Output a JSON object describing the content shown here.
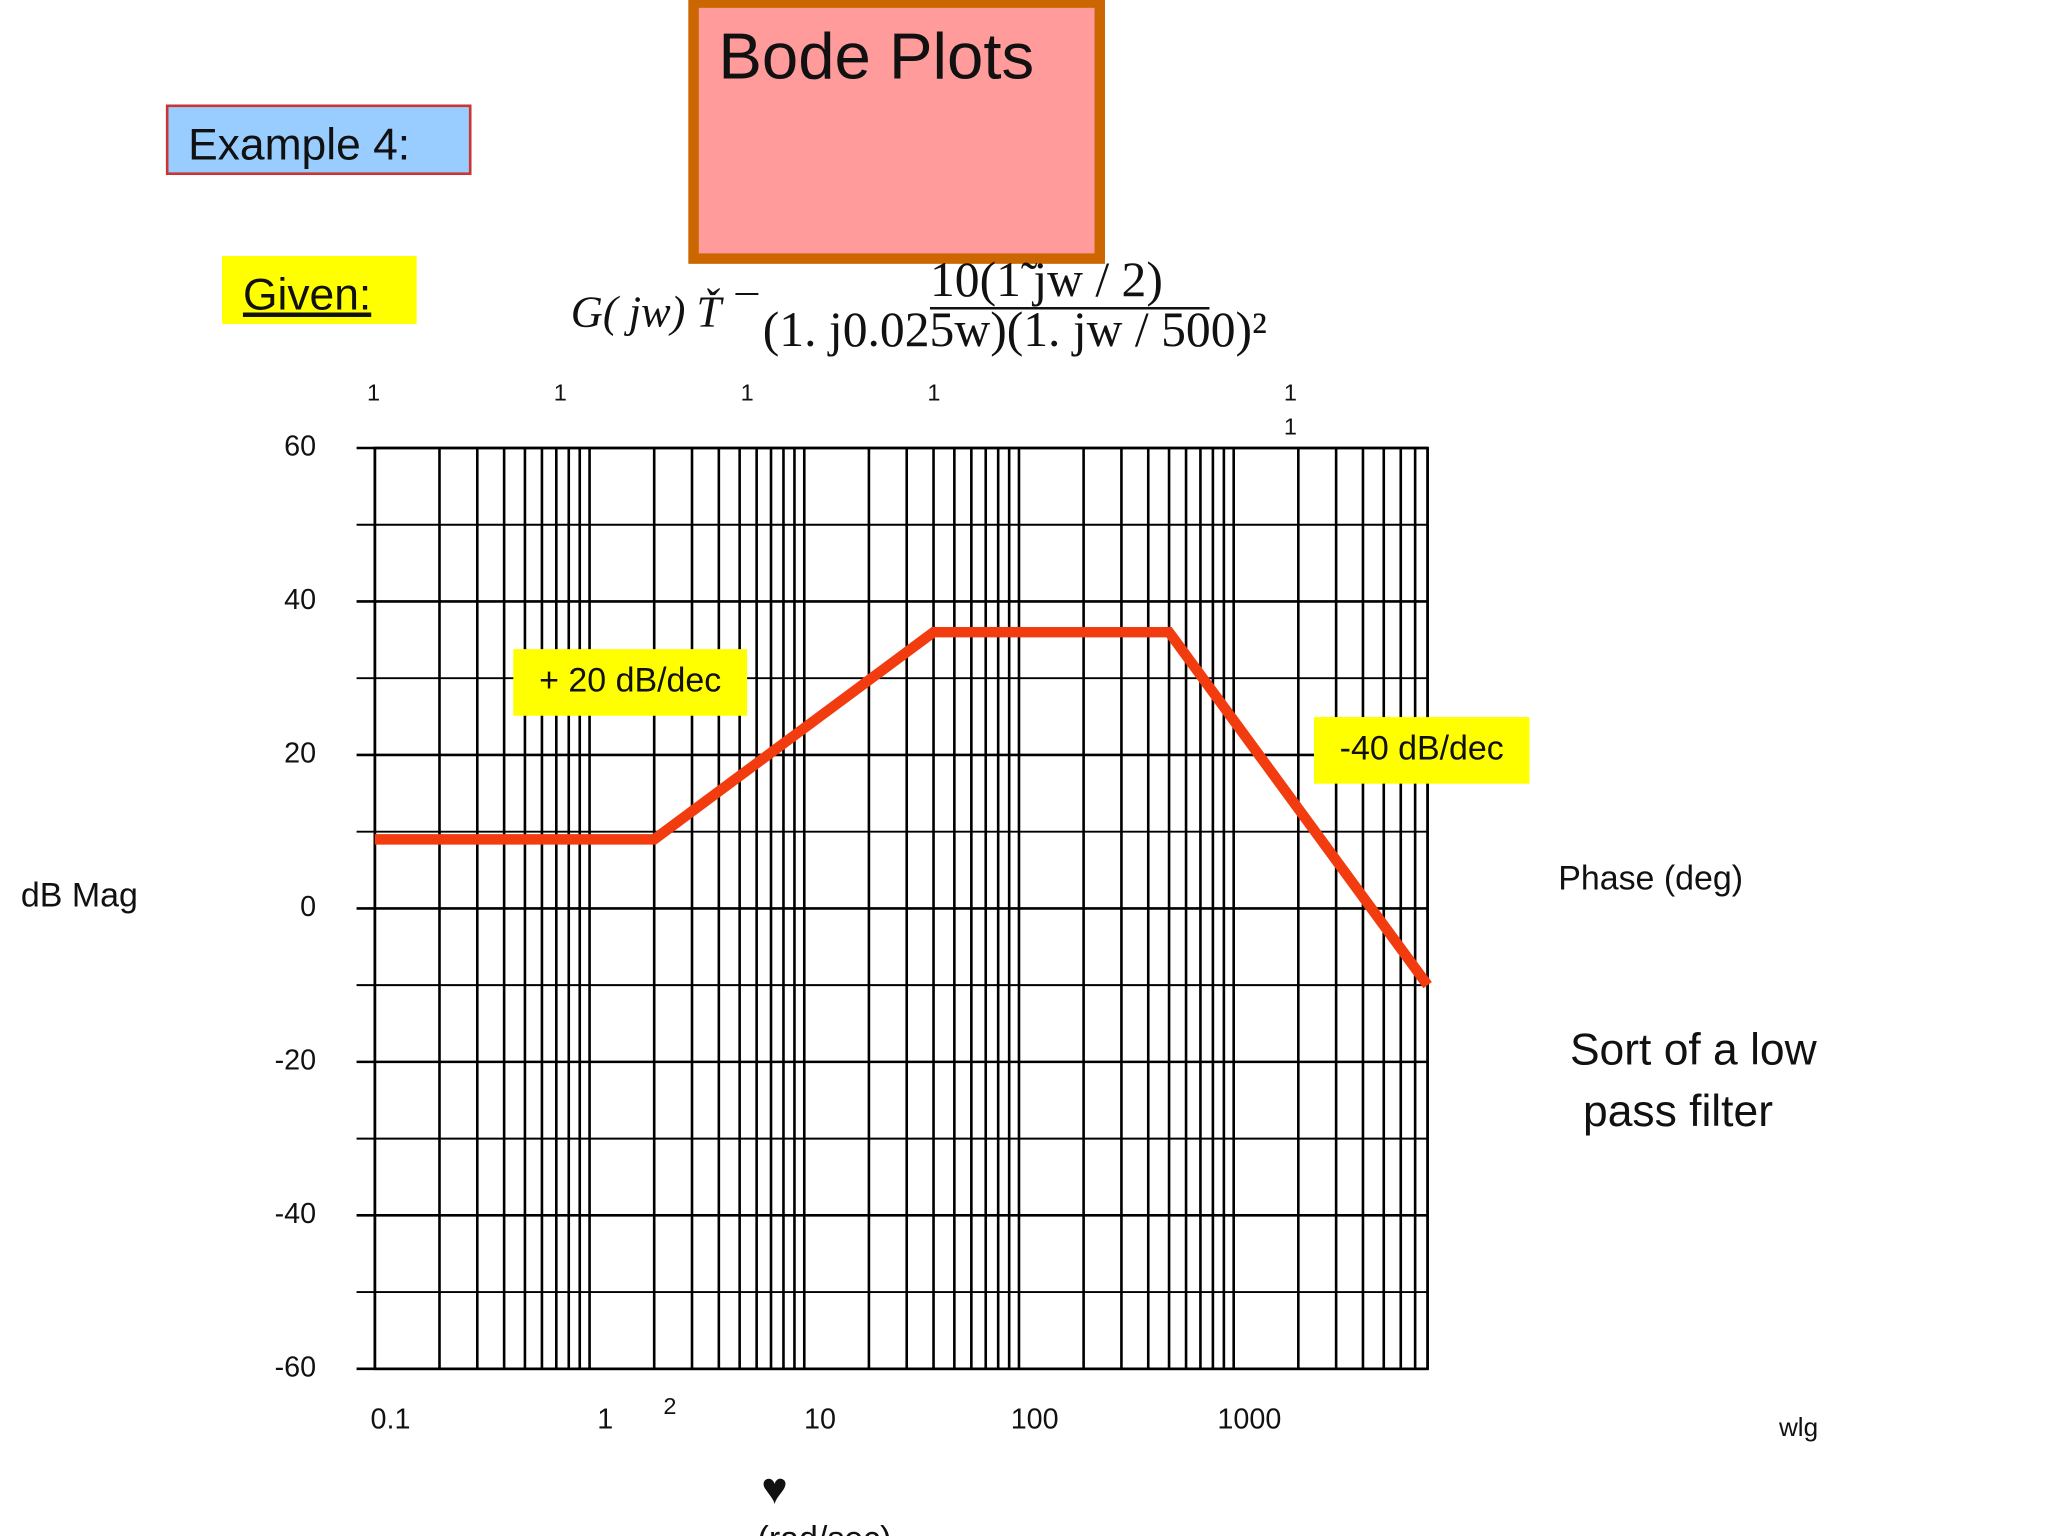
{
  "header": {
    "title": "Bode Plots",
    "example": "Example 4:",
    "given": "Given:"
  },
  "formula": {
    "lhs": "G( jw) Ť ¯",
    "numerator": "10(1̃  jw / 2)",
    "denominator": "(1.  j0.025w)(1.  jw / 500)²"
  },
  "top_labels": [
    "1",
    "1",
    "1",
    "1",
    "1",
    "1"
  ],
  "chart_data": {
    "type": "line",
    "x": [
      0.1,
      2,
      40,
      500,
      8000
    ],
    "series": [
      {
        "name": "dB Mag",
        "color": "#f23c0f",
        "values": [
          9,
          9,
          36,
          36,
          -10
        ]
      }
    ],
    "xlim": [
      0.1,
      8000
    ],
    "xticks": [
      0.1,
      1,
      2,
      10,
      100,
      1000
    ],
    "xscale": "log",
    "ylim": [
      -60,
      60
    ],
    "yticks": [
      -60,
      -40,
      -20,
      0,
      20,
      40,
      60
    ],
    "ylabel": "dB Mag",
    "y2label": "Phase (deg)",
    "xlabel": "(rad/sec)",
    "xmarker": "♥",
    "annotations": [
      "+ 20 dB/dec",
      "-40 dB/dec"
    ],
    "grid": true
  },
  "notes": [
    "Sort of a low",
    "pass filter"
  ],
  "corner_label": "wlg"
}
